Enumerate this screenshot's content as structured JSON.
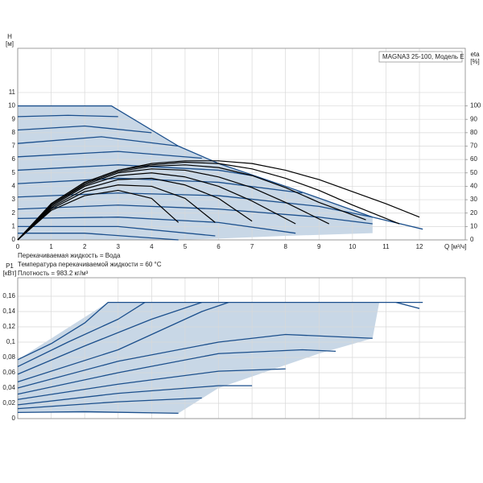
{
  "chart_data": [
    {
      "type": "line",
      "title": "MAGNA3 25-100, Модель E",
      "y_label": "H",
      "y_unit": "[м]",
      "y2_label": "eta",
      "y2_unit": "[%]",
      "x_label": "Q [м³/ч]",
      "notes": [
        "Перекачиваемая жидкость = Вода",
        "Температура перекачиваемой жидкости = 60 °C",
        "Плотность = 983.2 кг/м³"
      ],
      "xlim": [
        0,
        13.37
      ],
      "ylim": [
        0,
        14.3
      ],
      "y2lim": [
        0,
        143
      ],
      "xticks": [
        0,
        1,
        2,
        3,
        4,
        5,
        6,
        7,
        8,
        9,
        10,
        11,
        12
      ],
      "yticks": [
        0,
        1,
        2,
        3,
        4,
        5,
        6,
        7,
        8,
        9,
        10,
        11
      ],
      "y2ticks": [
        0,
        10,
        20,
        30,
        40,
        50,
        60,
        70,
        80,
        90,
        100
      ],
      "grid": true,
      "xtick_labels": true,
      "shaded_area": {
        "color": "#c8d7e6",
        "x": [
          0,
          0,
          2.8,
          4.8,
          6,
          8,
          10.6,
          10.6,
          8,
          6,
          4.8
        ],
        "values": [
          0,
          10,
          10,
          7,
          5.7,
          4,
          1.7,
          0.5,
          0.3,
          0.1,
          0
        ]
      },
      "series": [
        {
          "color": "#1b4f8c",
          "x": [
            0,
            2.8,
            4.8,
            6,
            8,
            10.6,
            12.1
          ],
          "values": [
            10,
            10,
            7,
            5.7,
            4,
            1.7,
            0.8
          ]
        },
        {
          "color": "#1b4f8c",
          "x": [
            0,
            1.5,
            3
          ],
          "values": [
            9.2,
            9.3,
            9.2
          ]
        },
        {
          "color": "#1b4f8c",
          "x": [
            0,
            2,
            4
          ],
          "values": [
            8.2,
            8.5,
            8.0
          ]
        },
        {
          "color": "#1b4f8c",
          "x": [
            0,
            2.5,
            4.8
          ],
          "values": [
            7.2,
            7.7,
            7.0
          ]
        },
        {
          "color": "#1b4f8c",
          "x": [
            0,
            3,
            5.5
          ],
          "values": [
            6.2,
            6.6,
            6.1
          ]
        },
        {
          "color": "#1b4f8c",
          "x": [
            0,
            3,
            6,
            7
          ],
          "values": [
            5.2,
            5.6,
            5.2,
            4.8
          ]
        },
        {
          "color": "#1b4f8c",
          "x": [
            0,
            3,
            6,
            8.5
          ],
          "values": [
            4.2,
            4.6,
            4.3,
            3.5
          ]
        },
        {
          "color": "#1b4f8c",
          "x": [
            0,
            3,
            6,
            9,
            10.6
          ],
          "values": [
            3.2,
            3.5,
            3.3,
            2.5,
            1.7
          ]
        },
        {
          "color": "#1b4f8c",
          "x": [
            0,
            3,
            6,
            9,
            10.6
          ],
          "values": [
            2.3,
            2.6,
            2.3,
            1.7,
            1.2
          ]
        },
        {
          "color": "#1b4f8c",
          "x": [
            0,
            3,
            6,
            8.3
          ],
          "values": [
            1.6,
            1.7,
            1.3,
            0.5
          ]
        },
        {
          "color": "#1b4f8c",
          "x": [
            0,
            3,
            5.9
          ],
          "values": [
            1.0,
            1.0,
            0.3
          ]
        },
        {
          "color": "#1b4f8c",
          "x": [
            0,
            2,
            4.8
          ],
          "values": [
            0.5,
            0.5,
            0
          ]
        },
        {
          "color": "#000000",
          "axis": "y2",
          "x": [
            0,
            1,
            2,
            3,
            4,
            5,
            6,
            7,
            8,
            9,
            10,
            11,
            12
          ],
          "values": [
            0,
            27,
            43,
            52,
            57,
            59,
            59,
            57,
            52,
            45,
            36,
            27,
            17
          ]
        },
        {
          "color": "#000000",
          "axis": "y2",
          "x": [
            0,
            1,
            2,
            3,
            4,
            5,
            6,
            7,
            8,
            9,
            10,
            11.4
          ],
          "values": [
            0,
            27,
            43,
            52,
            56,
            58,
            57,
            53,
            46,
            37,
            26,
            12
          ]
        },
        {
          "color": "#000000",
          "axis": "y2",
          "x": [
            0,
            1,
            2,
            3,
            4,
            5,
            6,
            7,
            8,
            9,
            10.4
          ],
          "values": [
            0,
            26,
            42,
            51,
            55,
            56,
            54,
            48,
            39,
            28,
            15
          ]
        },
        {
          "color": "#000000",
          "axis": "y2",
          "x": [
            0,
            1,
            2,
            3,
            4,
            5,
            6,
            7,
            8,
            9.3
          ],
          "values": [
            0,
            26,
            41,
            50,
            53,
            52,
            47,
            39,
            28,
            12
          ]
        },
        {
          "color": "#000000",
          "axis": "y2",
          "x": [
            0,
            1,
            2,
            3,
            4,
            5,
            6,
            7,
            8.3
          ],
          "values": [
            0,
            25,
            40,
            48,
            50,
            47,
            40,
            29,
            12
          ]
        },
        {
          "color": "#000000",
          "axis": "y2",
          "x": [
            0,
            1,
            2,
            3,
            4,
            5,
            6,
            7
          ],
          "values": [
            0,
            24,
            38,
            45,
            46,
            41,
            31,
            14
          ]
        },
        {
          "color": "#000000",
          "axis": "y2",
          "x": [
            0,
            1,
            2,
            3,
            4,
            5,
            5.9
          ],
          "values": [
            0,
            23,
            36,
            41,
            40,
            31,
            13
          ]
        },
        {
          "color": "#000000",
          "axis": "y2",
          "x": [
            0,
            1,
            2,
            3,
            4,
            4.8
          ],
          "values": [
            0,
            22,
            33,
            37,
            31,
            13
          ]
        }
      ]
    },
    {
      "type": "line",
      "y_label": "P1",
      "y_unit": "[кВт]",
      "xlim": [
        0,
        13.37
      ],
      "ylim": [
        0,
        0.1842
      ],
      "xticks": [
        0,
        1,
        2,
        3,
        4,
        5,
        6,
        7,
        8,
        9,
        10,
        11,
        12
      ],
      "yticks": [
        0,
        {
          "value": 0.02,
          "label": "0,02"
        },
        {
          "value": 0.04,
          "label": "0,04"
        },
        {
          "value": 0.06,
          "label": "0,06"
        },
        {
          "value": 0.08,
          "label": "0,08"
        },
        {
          "value": 0.1,
          "label": "0,1"
        },
        {
          "value": 0.12,
          "label": "0,12"
        },
        {
          "value": 0.14,
          "label": "0,14"
        },
        {
          "value": 0.16,
          "label": "0,16"
        }
      ],
      "grid": true,
      "xtick_labels": false,
      "shaded_area": {
        "color": "#c8d7e6",
        "x": [
          0,
          2.7,
          10.8,
          10.6,
          9,
          7,
          6,
          4.8,
          0
        ],
        "values": [
          0.077,
          0.152,
          0.152,
          0.105,
          0.085,
          0.055,
          0.04,
          0.007,
          0.008
        ]
      },
      "series": [
        {
          "color": "#1b4f8c",
          "x": [
            0,
            1,
            2,
            2.7,
            12.1
          ],
          "values": [
            0.077,
            0.098,
            0.125,
            0.152,
            0.152
          ]
        },
        {
          "color": "#1b4f8c",
          "x": [
            0,
            1.5,
            3,
            3.8
          ],
          "values": [
            0.068,
            0.1,
            0.13,
            0.152
          ]
        },
        {
          "color": "#1b4f8c",
          "x": [
            0,
            2,
            4,
            5.5
          ],
          "values": [
            0.058,
            0.095,
            0.13,
            0.152
          ]
        },
        {
          "color": "#1b4f8c",
          "x": [
            0,
            3,
            5.5,
            6.3
          ],
          "values": [
            0.048,
            0.09,
            0.14,
            0.152
          ]
        },
        {
          "color": "#1b4f8c",
          "x": [
            0,
            3,
            6,
            8,
            10.6
          ],
          "values": [
            0.04,
            0.075,
            0.1,
            0.11,
            0.105
          ]
        },
        {
          "color": "#1b4f8c",
          "x": [
            0,
            3,
            6,
            8.5,
            9.5
          ],
          "values": [
            0.032,
            0.06,
            0.085,
            0.09,
            0.088
          ]
        },
        {
          "color": "#1b4f8c",
          "x": [
            0,
            3,
            6,
            8
          ],
          "values": [
            0.025,
            0.045,
            0.062,
            0.065
          ]
        },
        {
          "color": "#1b4f8c",
          "x": [
            0,
            3,
            6,
            7
          ],
          "values": [
            0.018,
            0.033,
            0.043,
            0.043
          ]
        },
        {
          "color": "#1b4f8c",
          "x": [
            0,
            3,
            5.5
          ],
          "values": [
            0.013,
            0.022,
            0.027
          ]
        },
        {
          "color": "#1b4f8c",
          "x": [
            0,
            2,
            4.8
          ],
          "values": [
            0.008,
            0.009,
            0.007
          ]
        },
        {
          "color": "#1b4f8c",
          "x": [
            11.3,
            12
          ],
          "values": [
            0.152,
            0.144
          ]
        }
      ]
    }
  ]
}
